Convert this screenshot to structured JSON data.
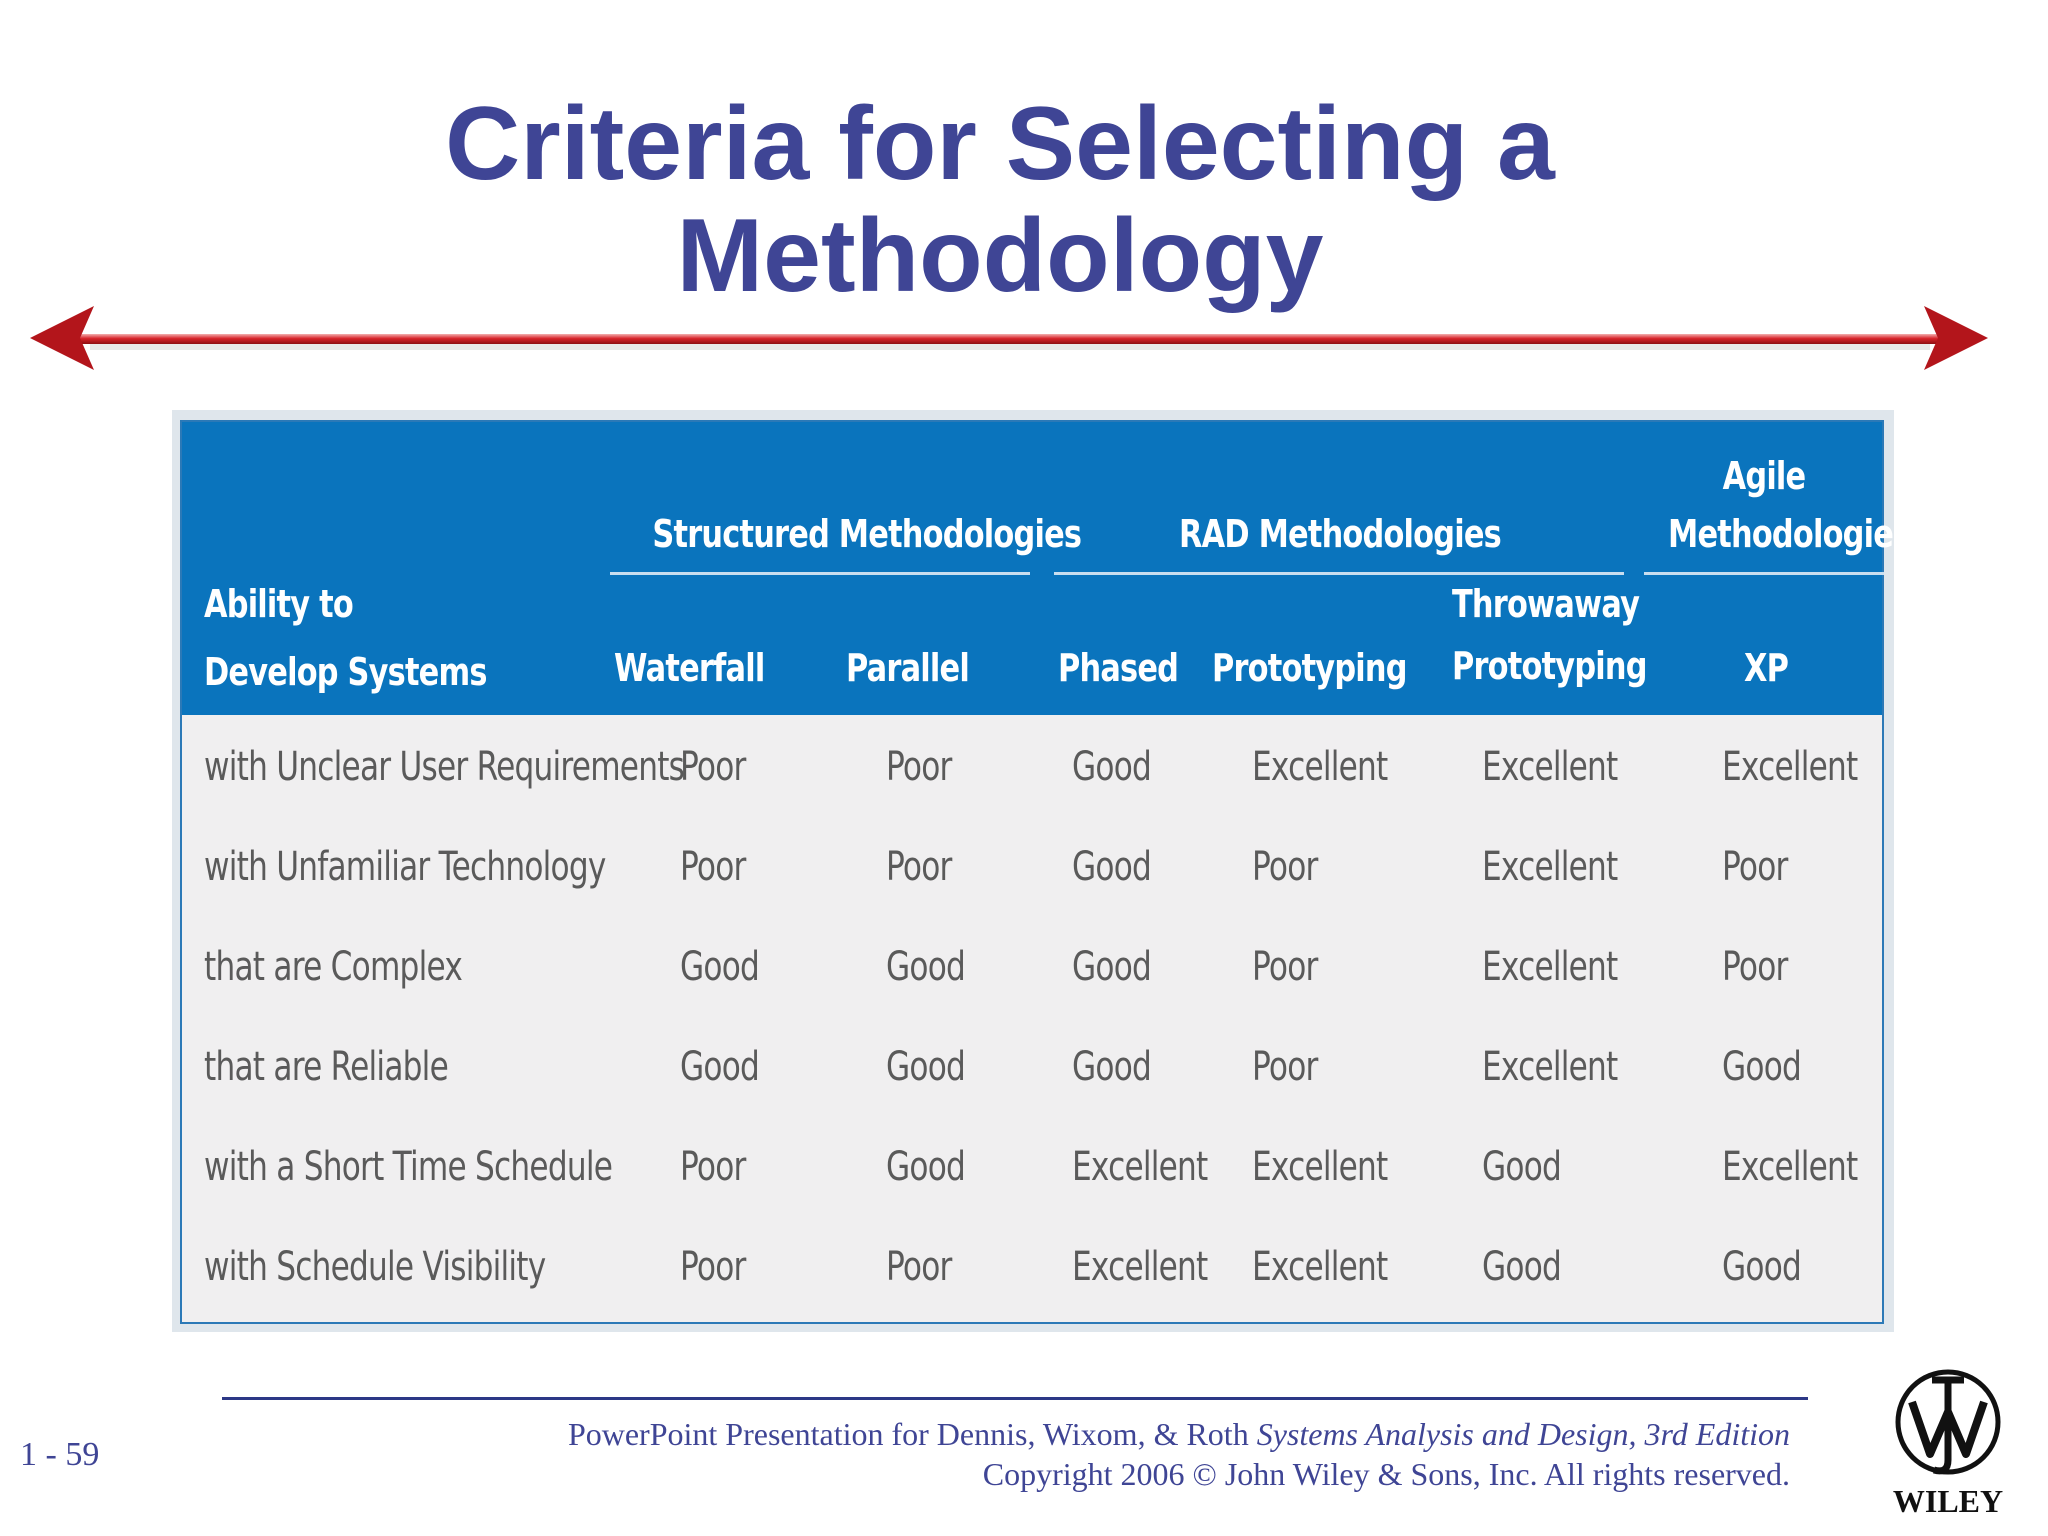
{
  "slide": {
    "title_line1": "Criteria for Selecting a",
    "title_line2": "Methodology",
    "slide_number": "1 - 59"
  },
  "table": {
    "row_header_label_line1": "Ability to",
    "row_header_label_line2": "Develop Systems",
    "groups": [
      {
        "label": "Structured Methodologies"
      },
      {
        "label": "RAD Methodologies"
      },
      {
        "label_line1": "Agile",
        "label_line2": "Methodologies"
      }
    ],
    "columns": [
      {
        "label": "Waterfall"
      },
      {
        "label": "Parallel"
      },
      {
        "label": "Phased"
      },
      {
        "label": "Prototyping"
      },
      {
        "label_line1": "Throwaway",
        "label_line2": "Prototyping"
      },
      {
        "label": "XP"
      }
    ],
    "rows": [
      {
        "label": "with Unclear User Requirements",
        "values": [
          "Poor",
          "Poor",
          "Good",
          "Excellent",
          "Excellent",
          "Excellent"
        ]
      },
      {
        "label": "with Unfamiliar Technology",
        "values": [
          "Poor",
          "Poor",
          "Good",
          "Poor",
          "Excellent",
          "Poor"
        ]
      },
      {
        "label": "that are Complex",
        "values": [
          "Good",
          "Good",
          "Good",
          "Poor",
          "Excellent",
          "Poor"
        ]
      },
      {
        "label": "that are Reliable",
        "values": [
          "Good",
          "Good",
          "Good",
          "Poor",
          "Excellent",
          "Good"
        ]
      },
      {
        "label": "with a Short Time Schedule",
        "values": [
          "Poor",
          "Good",
          "Excellent",
          "Excellent",
          "Good",
          "Excellent"
        ]
      },
      {
        "label": "with Schedule Visibility",
        "values": [
          "Poor",
          "Poor",
          "Excellent",
          "Excellent",
          "Good",
          "Good"
        ]
      }
    ]
  },
  "footer": {
    "line1_prefix": "PowerPoint Presentation for Dennis, Wixom, & Roth ",
    "line1_title": "Systems Analysis and Design, 3rd Edition",
    "line2": "Copyright 2006 © John Wiley & Sons, Inc.  All rights reserved."
  },
  "logo": {
    "text": "WILEY",
    "icon": "wiley-logo-icon"
  },
  "colors": {
    "title": "#3f4595",
    "header_bg": "#0a74bd",
    "arrow": "#c0141a"
  }
}
